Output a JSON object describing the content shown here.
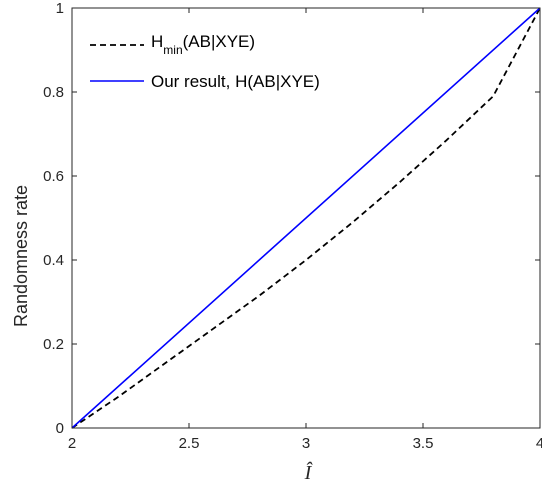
{
  "chart_data": {
    "type": "line",
    "xlabel": "Î",
    "ylabel": "Randomness rate",
    "xlim": [
      2,
      4
    ],
    "ylim": [
      0,
      1
    ],
    "xticks": [
      2,
      2.5,
      3,
      3.5,
      4
    ],
    "xtick_labels": [
      "2",
      "2.5",
      "3",
      "3.5",
      "4"
    ],
    "yticks": [
      0,
      0.2,
      0.4,
      0.6,
      0.8,
      1
    ],
    "ytick_labels": [
      "0",
      "0.2",
      "0.4",
      "0.6",
      "0.8",
      "1"
    ],
    "grid": false,
    "legend_position": "top-left",
    "series": [
      {
        "name": "H_min(AB|XYE)",
        "legend_main": "H",
        "legend_sub": "min",
        "legend_rest": "(AB|XYE)",
        "color": "#000000",
        "style": "dashed",
        "x": [
          2.0,
          2.2,
          2.4,
          2.6,
          2.8,
          3.0,
          3.2,
          3.4,
          3.6,
          3.8,
          4.0
        ],
        "y": [
          0.0,
          0.075,
          0.155,
          0.235,
          0.315,
          0.4,
          0.49,
          0.585,
          0.685,
          0.79,
          1.0
        ]
      },
      {
        "name": "Our result, H(AB|XYE)",
        "color": "#0000ff",
        "style": "solid",
        "x": [
          2.0,
          4.0
        ],
        "y": [
          0.0,
          1.0
        ]
      }
    ]
  }
}
